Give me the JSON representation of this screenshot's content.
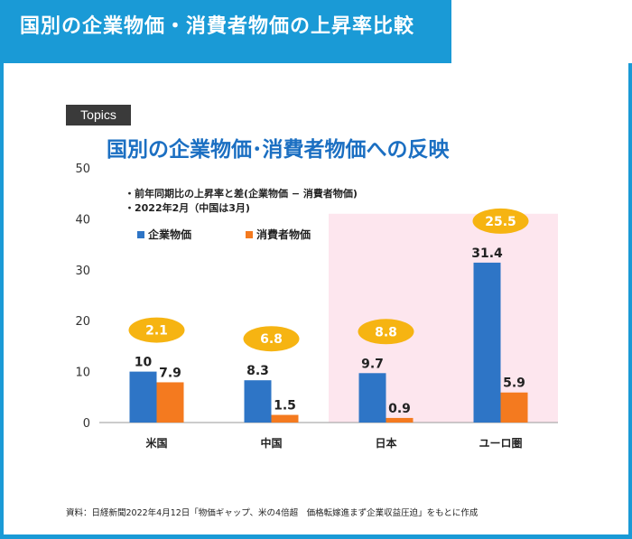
{
  "header": {
    "title": "国別の企業物価・消費者物価の上昇率比較"
  },
  "topics_label": "Topics",
  "notes": {
    "line1": "・前年同期比の上昇率と差(企業物価 − 消費者物価)",
    "line2": "・2022年2月（中国は3月)"
  },
  "source": "資料：日経新聞2022年4月12日「物価ギャップ、米の4倍超　価格転嫁進まず企業収益圧迫」をもとに作成",
  "colors": {
    "frame": "#1a9ad6",
    "corporate": "#2e75c6",
    "consumer": "#f47a1f",
    "diff_oval": "#f6b412",
    "highlight": "#fde6ee",
    "title": "#1b6fc2"
  },
  "chart_data": {
    "type": "bar",
    "title": "国別の企業物価･消費者物価への反映",
    "categories": [
      "米国",
      "中国",
      "日本",
      "ユーロ圏"
    ],
    "series": [
      {
        "name": "企業物価",
        "values": [
          10,
          8.3,
          9.7,
          31.4
        ],
        "labels": [
          "10",
          "8.3",
          "9.7",
          "31.4"
        ]
      },
      {
        "name": "消費者物価",
        "values": [
          7.9,
          1.5,
          0.9,
          5.9
        ],
        "labels": [
          "7.9",
          "1.5",
          "0.9",
          "5.9"
        ]
      }
    ],
    "differences": [
      2.1,
      6.8,
      8.8,
      25.5
    ],
    "difference_labels": [
      "2.1",
      "6.8",
      "8.8",
      "25.5"
    ],
    "highlighted_categories": [
      "日本",
      "ユーロ圏"
    ],
    "ylim": [
      0,
      50
    ],
    "yticks": [
      0,
      10,
      20,
      30,
      40,
      50
    ],
    "xlabel": "",
    "ylabel": "",
    "legend_position": "top-left"
  }
}
